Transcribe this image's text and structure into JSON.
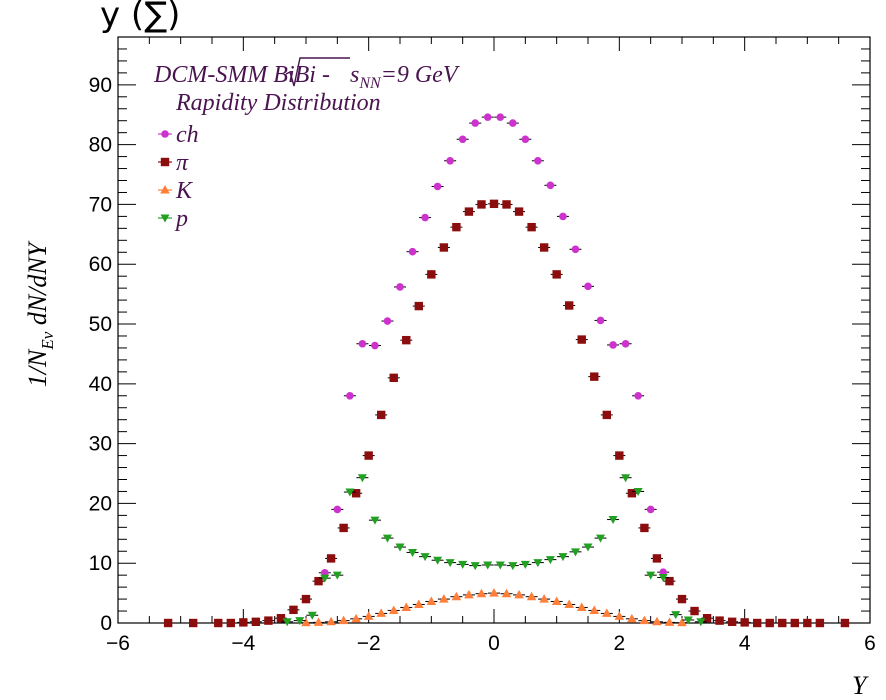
{
  "top_text": "y (∑)",
  "chart_data": {
    "type": "scatter",
    "title_line1_pre": "DCM-SMM BiBi - ",
    "title_line1_sqrt": "s",
    "title_line1_sub": "NN",
    "title_line1_post": "=9 GeV",
    "title_line2": "Rapidity Distribution",
    "xlabel": "Y",
    "ylabel_pre": "1/N",
    "ylabel_sub": "Ev",
    "ylabel_post": " dN/dNY",
    "xlim": [
      -6,
      6
    ],
    "ylim": [
      0,
      98
    ],
    "xticks": [
      -6,
      -4,
      -2,
      0,
      2,
      4,
      6
    ],
    "xtick_labels": [
      "−6",
      "−4",
      "−2",
      "0",
      "2",
      "4",
      "6"
    ],
    "yticks": [
      0,
      10,
      20,
      30,
      40,
      50,
      60,
      70,
      80,
      90
    ],
    "ytick_labels": [
      "0",
      "10",
      "20",
      "30",
      "40",
      "50",
      "60",
      "70",
      "80",
      "90"
    ],
    "series": [
      {
        "name": "ch",
        "marker": "circle",
        "color": "#cc33cc",
        "points": [
          [
            -2.7,
            8.4
          ],
          [
            -2.5,
            19.0
          ],
          [
            -2.3,
            38.0
          ],
          [
            -2.1,
            46.7
          ],
          [
            -1.9,
            46.4
          ],
          [
            -1.7,
            50.5
          ],
          [
            -1.5,
            56.2
          ],
          [
            -1.3,
            62.1
          ],
          [
            -1.1,
            67.8
          ],
          [
            -0.9,
            73.0
          ],
          [
            -0.7,
            77.3
          ],
          [
            -0.5,
            80.9
          ],
          [
            -0.3,
            83.6
          ],
          [
            -0.1,
            84.6
          ],
          [
            0.1,
            84.6
          ],
          [
            0.3,
            83.6
          ],
          [
            0.5,
            80.9
          ],
          [
            0.7,
            77.3
          ],
          [
            0.9,
            73.2
          ],
          [
            1.1,
            68.0
          ],
          [
            1.3,
            62.5
          ],
          [
            1.5,
            56.3
          ],
          [
            1.7,
            50.6
          ],
          [
            1.9,
            46.5
          ],
          [
            2.1,
            46.7
          ],
          [
            2.3,
            38.0
          ],
          [
            2.5,
            19.0
          ],
          [
            2.7,
            8.5
          ]
        ]
      },
      {
        "name": "π",
        "marker": "square",
        "color": "#8b0d0d",
        "points": [
          [
            -5.2,
            0.0
          ],
          [
            -4.8,
            0.0
          ],
          [
            -4.4,
            0.0
          ],
          [
            -4.2,
            0.0
          ],
          [
            -4.0,
            0.1
          ],
          [
            -3.8,
            0.2
          ],
          [
            -3.6,
            0.4
          ],
          [
            -3.4,
            0.8
          ],
          [
            -3.2,
            2.2
          ],
          [
            -3.0,
            4.0
          ],
          [
            -2.8,
            7.0
          ],
          [
            -2.6,
            10.8
          ],
          [
            -2.4,
            15.9
          ],
          [
            -2.2,
            21.7
          ],
          [
            -2.0,
            28.0
          ],
          [
            -1.8,
            34.8
          ],
          [
            -1.6,
            41.0
          ],
          [
            -1.4,
            47.3
          ],
          [
            -1.2,
            53.0
          ],
          [
            -1.0,
            58.3
          ],
          [
            -0.8,
            62.8
          ],
          [
            -0.6,
            66.2
          ],
          [
            -0.4,
            68.8
          ],
          [
            -0.2,
            70.0
          ],
          [
            0.0,
            70.1
          ],
          [
            0.2,
            70.0
          ],
          [
            0.4,
            68.8
          ],
          [
            0.6,
            66.2
          ],
          [
            0.8,
            62.8
          ],
          [
            1.0,
            58.3
          ],
          [
            1.2,
            53.1
          ],
          [
            1.4,
            47.4
          ],
          [
            1.6,
            41.2
          ],
          [
            1.8,
            34.8
          ],
          [
            2.0,
            28.0
          ],
          [
            2.2,
            21.7
          ],
          [
            2.4,
            15.9
          ],
          [
            2.6,
            10.8
          ],
          [
            2.8,
            7.0
          ],
          [
            3.0,
            4.0
          ],
          [
            3.2,
            2.0
          ],
          [
            3.4,
            0.8
          ],
          [
            3.6,
            0.4
          ],
          [
            3.8,
            0.2
          ],
          [
            4.0,
            0.1
          ],
          [
            4.2,
            0.0
          ],
          [
            4.4,
            0.0
          ],
          [
            4.6,
            0.0
          ],
          [
            4.8,
            0.0
          ],
          [
            5.0,
            0.0
          ],
          [
            5.2,
            0.0
          ],
          [
            5.6,
            0.0
          ]
        ]
      },
      {
        "name": "K",
        "marker": "triangle",
        "color": "#ff7f3a",
        "points": [
          [
            -3.0,
            0.05
          ],
          [
            -2.8,
            0.1
          ],
          [
            -2.6,
            0.2
          ],
          [
            -2.4,
            0.4
          ],
          [
            -2.2,
            0.7
          ],
          [
            -2.0,
            1.1
          ],
          [
            -1.8,
            1.6
          ],
          [
            -1.6,
            2.1
          ],
          [
            -1.4,
            2.6
          ],
          [
            -1.2,
            3.1
          ],
          [
            -1.0,
            3.6
          ],
          [
            -0.8,
            4.0
          ],
          [
            -0.6,
            4.4
          ],
          [
            -0.4,
            4.7
          ],
          [
            -0.2,
            4.9
          ],
          [
            0.0,
            5.0
          ],
          [
            0.2,
            4.9
          ],
          [
            0.4,
            4.7
          ],
          [
            0.6,
            4.4
          ],
          [
            0.8,
            4.0
          ],
          [
            1.0,
            3.6
          ],
          [
            1.2,
            3.1
          ],
          [
            1.4,
            2.6
          ],
          [
            1.6,
            2.1
          ],
          [
            1.8,
            1.6
          ],
          [
            2.0,
            1.1
          ],
          [
            2.2,
            0.7
          ],
          [
            2.4,
            0.4
          ],
          [
            2.6,
            0.2
          ],
          [
            2.8,
            0.1
          ],
          [
            3.0,
            0.05
          ]
        ]
      },
      {
        "name": "p",
        "marker": "tri-down",
        "color": "#22a022",
        "points": [
          [
            -3.3,
            0.2
          ],
          [
            -3.1,
            0.4
          ],
          [
            -2.9,
            1.3
          ],
          [
            -2.7,
            7.5
          ],
          [
            -2.5,
            8.0
          ],
          [
            -2.3,
            21.9
          ],
          [
            -2.1,
            24.3
          ],
          [
            -1.9,
            17.2
          ],
          [
            -1.7,
            14.2
          ],
          [
            -1.5,
            12.7
          ],
          [
            -1.3,
            11.8
          ],
          [
            -1.1,
            11.1
          ],
          [
            -0.9,
            10.5
          ],
          [
            -0.7,
            10.1
          ],
          [
            -0.5,
            9.8
          ],
          [
            -0.3,
            9.6
          ],
          [
            -0.1,
            9.7
          ],
          [
            0.1,
            9.7
          ],
          [
            0.3,
            9.6
          ],
          [
            0.5,
            9.8
          ],
          [
            0.7,
            10.1
          ],
          [
            0.9,
            10.6
          ],
          [
            1.1,
            11.1
          ],
          [
            1.3,
            11.9
          ],
          [
            1.5,
            12.7
          ],
          [
            1.7,
            14.2
          ],
          [
            1.9,
            17.3
          ],
          [
            2.1,
            24.3
          ],
          [
            2.3,
            22.0
          ],
          [
            2.5,
            8.0
          ],
          [
            2.7,
            7.6
          ],
          [
            2.9,
            1.4
          ],
          [
            3.1,
            0.5
          ],
          [
            3.3,
            0.2
          ]
        ]
      }
    ],
    "legend_position": "top-left",
    "grid": false
  }
}
